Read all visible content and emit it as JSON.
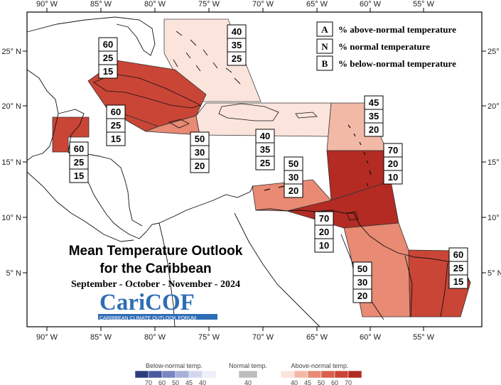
{
  "lon_labels": [
    "90° W",
    "85° W",
    "80° W",
    "75° W",
    "70° W",
    "65° W",
    "60° W",
    "55° W"
  ],
  "lat_labels": [
    "25° N",
    "20° N",
    "15° N",
    "10° N",
    "5° N"
  ],
  "legend_key": [
    {
      "letter": "A",
      "text": "% above-normal temperature"
    },
    {
      "letter": "N",
      "text": "% normal temperature"
    },
    {
      "letter": "B",
      "text": "% below-normal temperature"
    }
  ],
  "regions": [
    {
      "id": "bahamas",
      "A": "40",
      "N": "35",
      "B": "25",
      "color": "#fbe4dc"
    },
    {
      "id": "cuba",
      "A": "60",
      "N": "25",
      "B": "15",
      "color": "#c94536"
    },
    {
      "id": "belize",
      "A": "60",
      "N": "25",
      "B": "15",
      "color": "#c94536"
    },
    {
      "id": "cayman",
      "A": "60",
      "N": "25",
      "B": "15",
      "color": "#c94536"
    },
    {
      "id": "jamaica",
      "A": "50",
      "N": "30",
      "B": "20",
      "color": "#e88a74"
    },
    {
      "id": "hispaniola",
      "A": "40",
      "N": "35",
      "B": "25",
      "color": "#fbe4dc"
    },
    {
      "id": "leeward",
      "A": "45",
      "N": "35",
      "B": "20",
      "color": "#f3b9a7"
    },
    {
      "id": "windward",
      "A": "70",
      "N": "20",
      "B": "10",
      "color": "#b32b23"
    },
    {
      "id": "abc",
      "A": "50",
      "N": "30",
      "B": "20",
      "color": "#e88a74"
    },
    {
      "id": "trinidad",
      "A": "70",
      "N": "20",
      "B": "10",
      "color": "#b32b23"
    },
    {
      "id": "guyana",
      "A": "50",
      "N": "30",
      "B": "20",
      "color": "#e88a74"
    },
    {
      "id": "suriname",
      "A": "60",
      "N": "25",
      "B": "15",
      "color": "#c94536"
    }
  ],
  "title": {
    "line1": "Mean Temperature Outlook",
    "line2": "for the Caribbean",
    "line3": "September - October - November - 2024"
  },
  "logo": {
    "name": "CariCOF",
    "subtitle": "CARIBBEAN CLIMATE OUTLOOK FORUM",
    "color": "#2f6db5"
  },
  "scale": {
    "below": {
      "label": "Below-normal temp.",
      "ticks": [
        "70",
        "60",
        "50",
        "45",
        "40"
      ],
      "colors": [
        "#2c3e7d",
        "#4a5aa0",
        "#7a86c2",
        "#a8b0da",
        "#d3d7ee",
        "#eef0f9"
      ]
    },
    "normal": {
      "label": "Normal temp.",
      "ticks": [
        "40"
      ],
      "colors": [
        "#bdbdbd"
      ]
    },
    "above": {
      "label": "Above-normal temp.",
      "ticks": [
        "40",
        "45",
        "50",
        "60",
        "70"
      ],
      "colors": [
        "#fbe4dc",
        "#f3b9a7",
        "#e88a74",
        "#d9604d",
        "#c94536",
        "#b32b23"
      ]
    }
  }
}
